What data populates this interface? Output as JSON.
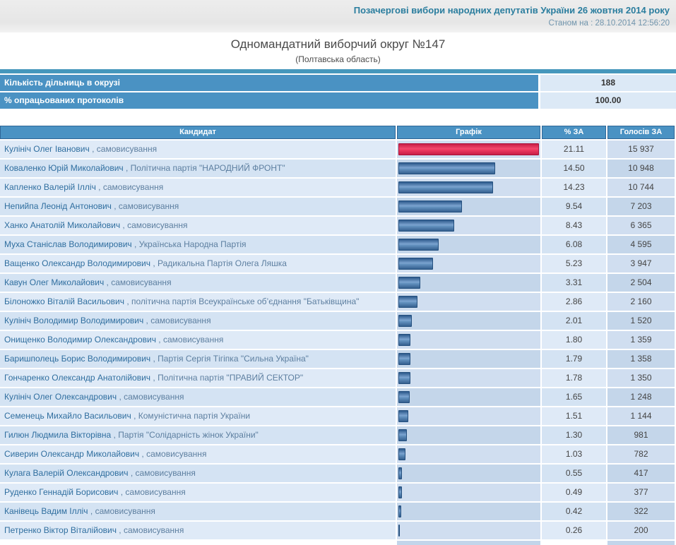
{
  "header": {
    "election_title": "Позачергові вибори народних депутатів України 26 жовтня 2014 року",
    "timestamp": "Станом на : 28.10.2014 12:56:20"
  },
  "page": {
    "title": "Одномандатний виборчий округ №147",
    "subtitle": "(Полтавська область)"
  },
  "summary": {
    "precincts_label": "Кількість дільниць в окрузі",
    "precincts_value": "188",
    "protocols_label": "% опрацьованих протоколів",
    "protocols_value": "100.00"
  },
  "table": {
    "columns": [
      "Кандидат",
      "Графік",
      "% ЗА",
      "Голосів ЗА"
    ],
    "name_party_separator": " , ",
    "max_pct": "21.11",
    "rows": [
      {
        "name": "Кулініч Олег Іванович",
        "party": "самовисування",
        "pct": "21.11",
        "votes": "15 937",
        "bar_color": "red"
      },
      {
        "name": "Коваленко Юрій Миколайович",
        "party": "Політична партія \"НАРОДНИЙ ФРОНТ\"",
        "pct": "14.50",
        "votes": "10 948",
        "bar_color": "blue"
      },
      {
        "name": "Капленко Валерій Ілліч",
        "party": "самовисування",
        "pct": "14.23",
        "votes": "10 744",
        "bar_color": "blue"
      },
      {
        "name": "Непийпа Леонід Антонович",
        "party": "самовисування",
        "pct": "9.54",
        "votes": "7 203",
        "bar_color": "blue"
      },
      {
        "name": "Ханко Анатолій Миколайович",
        "party": "самовисування",
        "pct": "8.43",
        "votes": "6 365",
        "bar_color": "blue"
      },
      {
        "name": "Муха Станіслав Володимирович",
        "party": "Українська Народна Партія",
        "pct": "6.08",
        "votes": "4 595",
        "bar_color": "blue"
      },
      {
        "name": "Ващенко Олександр Володимирович",
        "party": "Радикальна Партія Олега Ляшка",
        "pct": "5.23",
        "votes": "3 947",
        "bar_color": "blue"
      },
      {
        "name": "Кавун Олег Миколайович",
        "party": "самовисування",
        "pct": "3.31",
        "votes": "2 504",
        "bar_color": "blue"
      },
      {
        "name": "Білоножко Віталій Васильович",
        "party": "політична партія Всеукраїнське об’єднання \"Батьківщина\"",
        "pct": "2.86",
        "votes": "2 160",
        "bar_color": "blue"
      },
      {
        "name": "Кулініч Володимир Володимирович",
        "party": "самовисування",
        "pct": "2.01",
        "votes": "1 520",
        "bar_color": "blue"
      },
      {
        "name": "Онищенко Володимир Олександрович",
        "party": "самовисування",
        "pct": "1.80",
        "votes": "1 359",
        "bar_color": "blue"
      },
      {
        "name": "Баришполець Борис Володимирович",
        "party": "Партія Сергія Тігіпка \"Сильна Україна\"",
        "pct": "1.79",
        "votes": "1 358",
        "bar_color": "blue"
      },
      {
        "name": "Гончаренко Олександр Анатолійович",
        "party": "Політична партія \"ПРАВИЙ СЕКТОР\"",
        "pct": "1.78",
        "votes": "1 350",
        "bar_color": "blue"
      },
      {
        "name": "Кулініч Олег Олександрович",
        "party": "самовисування",
        "pct": "1.65",
        "votes": "1 248",
        "bar_color": "blue"
      },
      {
        "name": "Семенець Михайло Васильович",
        "party": "Комуністична партія України",
        "pct": "1.51",
        "votes": "1 144",
        "bar_color": "blue"
      },
      {
        "name": "Гилюн Людмила Вікторівна",
        "party": "Партія \"Солідарність жінок України\"",
        "pct": "1.30",
        "votes": "981",
        "bar_color": "blue"
      },
      {
        "name": "Сиверин Олександр Миколайович",
        "party": "самовисування",
        "pct": "1.03",
        "votes": "782",
        "bar_color": "blue"
      },
      {
        "name": "Кулага Валерій Олександрович",
        "party": "самовисування",
        "pct": "0.55",
        "votes": "417",
        "bar_color": "blue"
      },
      {
        "name": "Руденко Геннадій Борисович",
        "party": "самовисування",
        "pct": "0.49",
        "votes": "377",
        "bar_color": "blue"
      },
      {
        "name": "Канівець Вадим Ілліч",
        "party": "самовисування",
        "pct": "0.42",
        "votes": "322",
        "bar_color": "blue"
      },
      {
        "name": "Петренко Віктор Віталійович",
        "party": "самовисування",
        "pct": "0.26",
        "votes": "200",
        "bar_color": "blue"
      }
    ]
  },
  "colors": {
    "header_blue": "#4A92C3",
    "separator_teal": "#4597BC",
    "title_teal": "#2A7D9E",
    "bar_blue": "#3D6CA0",
    "bar_red": "#E8355E",
    "row_light": "#DFEAF7",
    "row_dark": "#C4D6EA"
  }
}
